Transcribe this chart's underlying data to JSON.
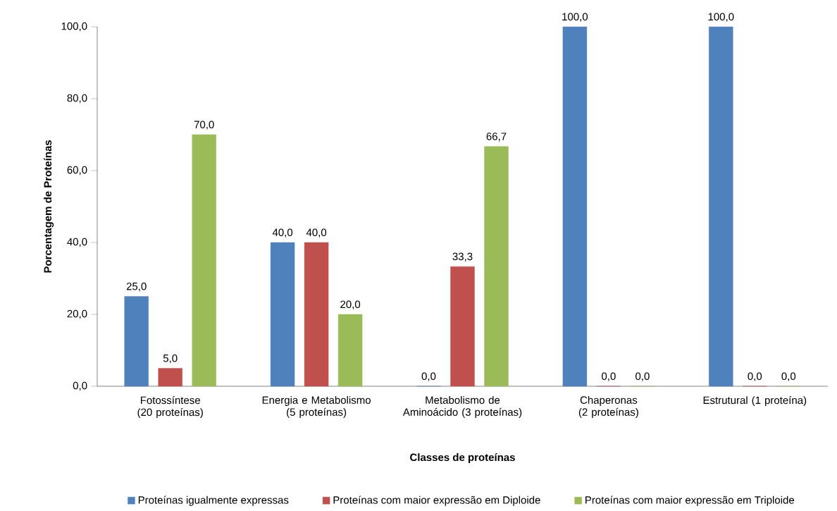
{
  "chart_data": {
    "type": "bar",
    "xlabel": "Classes de proteínas",
    "ylabel": "Porcentagem de Proteínas",
    "categories": [
      "Fotossíntese (20 proteínas)",
      "Energia e Metabolismo (5 proteínas)",
      "Metabolismo de Aminoácido (3 proteínas)",
      "Chaperonas (2 proteínas)",
      "Estrutural (1 proteína)"
    ],
    "series": [
      {
        "name": "Proteínas igualmente expressas",
        "color": "#4f81bd",
        "values": [
          25,
          40,
          0,
          100,
          100
        ],
        "value_labels": [
          "25,0",
          "40,0",
          "0,0",
          "100,0",
          "100,0"
        ]
      },
      {
        "name": "Proteínas com maior expressão em Diploide",
        "color": "#c0504d",
        "values": [
          5,
          40,
          33.3,
          0,
          0
        ],
        "value_labels": [
          "5,0",
          "40,0",
          "33,3",
          "0,0",
          "0,0"
        ]
      },
      {
        "name": "Proteínas com maior expressão em Triploide",
        "color": "#9bbb59",
        "values": [
          70,
          20,
          66.7,
          0,
          0
        ],
        "value_labels": [
          "70,0",
          "20,0",
          "66,7",
          "0,0",
          "0,0"
        ]
      }
    ],
    "ylim": [
      0,
      100
    ],
    "yticks": [
      {
        "value": 0,
        "label": "0,0"
      },
      {
        "value": 20,
        "label": "20,0"
      },
      {
        "value": 40,
        "label": "40,0"
      },
      {
        "value": 60,
        "label": "60,0"
      },
      {
        "value": 80,
        "label": "80,0"
      },
      {
        "value": 100,
        "label": "100,0"
      }
    ],
    "legend": "bottom"
  }
}
